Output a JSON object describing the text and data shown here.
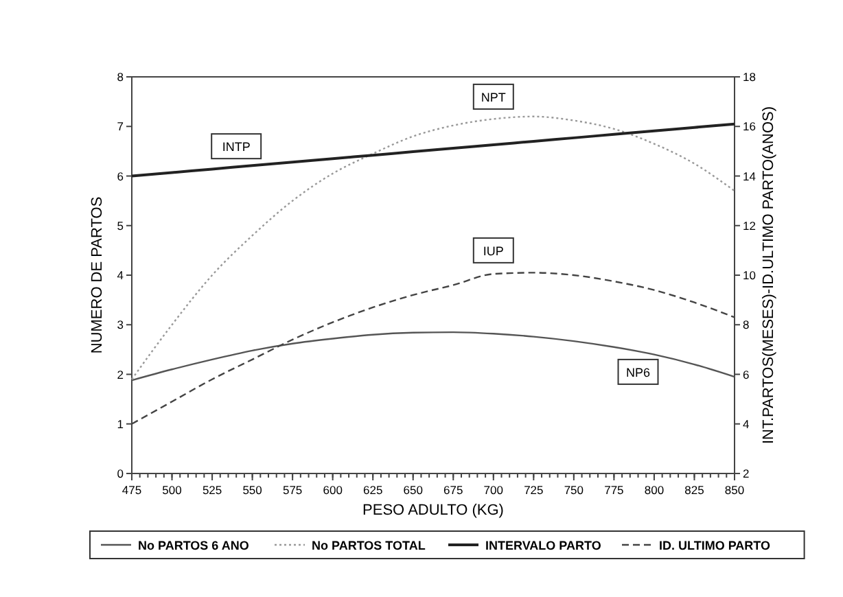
{
  "chart_data": {
    "type": "line",
    "xlabel": "PESO ADULTO (KG)",
    "ylabel": "NUMERO DE PARTOS",
    "y2label": "INT.PARTOS(MESES)-ID.ULTIMO PARTO(ANOS)",
    "x": [
      475,
      500,
      525,
      550,
      575,
      600,
      625,
      650,
      675,
      700,
      725,
      750,
      775,
      800,
      825,
      850
    ],
    "xlim": [
      475,
      850
    ],
    "xticks": [
      475,
      500,
      525,
      550,
      575,
      600,
      625,
      650,
      675,
      700,
      725,
      750,
      775,
      800,
      825,
      850
    ],
    "ylim": [
      0,
      8
    ],
    "yticks": [
      0,
      1,
      2,
      3,
      4,
      5,
      6,
      7,
      8
    ],
    "y2lim": [
      2,
      18
    ],
    "y2ticks": [
      2,
      4,
      6,
      8,
      10,
      12,
      14,
      16,
      18
    ],
    "grid": false,
    "legend": "bottom",
    "series": [
      {
        "name": "No PARTOS 6 ANO",
        "color": "#555555",
        "line_style": "solid",
        "values": [
          1.88,
          2.1,
          2.3,
          2.48,
          2.62,
          2.72,
          2.8,
          2.84,
          2.85,
          2.82,
          2.76,
          2.67,
          2.55,
          2.4,
          2.2,
          1.95
        ]
      },
      {
        "name": "No PARTOS TOTAL",
        "color": "#999999",
        "line_style": "dotted",
        "values": [
          1.9,
          3.0,
          4.0,
          4.8,
          5.5,
          6.05,
          6.45,
          6.8,
          7.02,
          7.15,
          7.2,
          7.12,
          6.95,
          6.65,
          6.25,
          5.7
        ]
      },
      {
        "name": "INTERVALO PARTO",
        "color": "#222222",
        "line_style": "solid",
        "axis": "y2",
        "values": [
          14.0,
          14.14,
          14.28,
          14.42,
          14.56,
          14.7,
          14.84,
          14.98,
          15.12,
          15.26,
          15.4,
          15.54,
          15.68,
          15.82,
          15.96,
          16.1
        ]
      },
      {
        "name": "ID. ULTIMO PARTO",
        "color": "#444444",
        "line_style": "dashed",
        "axis": "y2",
        "values": [
          4.0,
          4.9,
          5.8,
          6.6,
          7.4,
          8.1,
          8.7,
          9.2,
          9.6,
          10.05,
          10.1,
          10.0,
          9.75,
          9.4,
          8.9,
          8.3
        ]
      }
    ],
    "annotations": [
      {
        "text": "NPT",
        "x": 700,
        "y": 7.6
      },
      {
        "text": "INTP",
        "x": 540,
        "y": 6.6
      },
      {
        "text": "IUP",
        "x": 700,
        "y": 4.5
      },
      {
        "text": "NP6",
        "x": 790,
        "y": 2.05
      }
    ]
  }
}
